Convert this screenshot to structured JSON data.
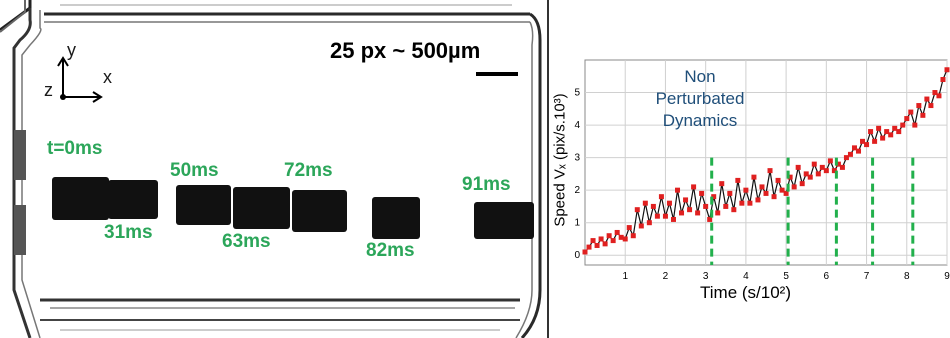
{
  "image": {
    "scale_label": "25 px ~ 500µm",
    "axes_labels": {
      "y": "y",
      "z": "z",
      "x": "x"
    },
    "frame_labels": [
      "t=0ms",
      "31ms",
      "50ms",
      "63ms",
      "72ms",
      "82ms",
      "91ms"
    ],
    "colors": {
      "frame_label": "#2ca65a",
      "annotation": "#1f4e79"
    }
  },
  "chart_data": {
    "type": "line",
    "xlabel": "Time (s/10²)",
    "ylabel": "Speed Vₓ (pix/s.10³)",
    "xlim": [
      0,
      9
    ],
    "ylim": [
      -0.3,
      6
    ],
    "x_ticks": [
      "1",
      "2",
      "3",
      "4",
      "5",
      "6",
      "7",
      "8",
      "9"
    ],
    "y_ticks": [
      "0",
      "1",
      "2",
      "3",
      "4",
      "5"
    ],
    "grid": true,
    "annotation": [
      "Non",
      "Perturbated",
      "Dynamics"
    ],
    "series": [
      {
        "style": "black line with red markers",
        "x": [
          0.0,
          0.1,
          0.2,
          0.3,
          0.4,
          0.5,
          0.6,
          0.7,
          0.8,
          0.9,
          1.0,
          1.1,
          1.2,
          1.3,
          1.4,
          1.5,
          1.6,
          1.7,
          1.8,
          1.9,
          2.0,
          2.1,
          2.2,
          2.3,
          2.4,
          2.5,
          2.6,
          2.7,
          2.8,
          2.9,
          3.0,
          3.1,
          3.2,
          3.3,
          3.4,
          3.5,
          3.6,
          3.7,
          3.8,
          3.9,
          4.0,
          4.1,
          4.2,
          4.3,
          4.4,
          4.5,
          4.6,
          4.7,
          4.8,
          4.9,
          5.0,
          5.1,
          5.2,
          5.3,
          5.4,
          5.5,
          5.6,
          5.7,
          5.8,
          5.9,
          6.0,
          6.1,
          6.2,
          6.3,
          6.4,
          6.5,
          6.6,
          6.7,
          6.8,
          6.9,
          7.0,
          7.1,
          7.2,
          7.3,
          7.4,
          7.5,
          7.6,
          7.7,
          7.8,
          7.9,
          8.0,
          8.1,
          8.2,
          8.3,
          8.4,
          8.5,
          8.6,
          8.7,
          8.8,
          8.9,
          9.0
        ],
        "y": [
          0.1,
          0.25,
          0.45,
          0.3,
          0.5,
          0.35,
          0.6,
          0.45,
          0.7,
          0.55,
          0.5,
          0.85,
          0.6,
          1.4,
          0.9,
          1.6,
          1.0,
          1.5,
          1.2,
          1.8,
          1.2,
          1.6,
          1.1,
          2.0,
          1.3,
          1.7,
          1.4,
          2.1,
          1.3,
          1.9,
          1.5,
          1.1,
          1.8,
          1.3,
          2.2,
          1.5,
          1.9,
          1.4,
          2.3,
          1.6,
          2.0,
          1.6,
          2.4,
          1.7,
          2.1,
          1.9,
          2.6,
          1.8,
          2.3,
          2.0,
          1.9,
          2.4,
          2.1,
          2.7,
          2.2,
          2.5,
          2.4,
          2.8,
          2.5,
          2.7,
          2.6,
          2.9,
          2.6,
          2.8,
          2.7,
          3.0,
          3.1,
          3.3,
          3.2,
          3.5,
          3.4,
          3.8,
          3.5,
          3.9,
          3.6,
          3.8,
          3.7,
          3.9,
          3.8,
          4.0,
          4.2,
          4.4,
          4.0,
          4.6,
          4.3,
          4.8,
          4.6,
          5.0,
          4.9,
          5.4,
          5.7
        ]
      }
    ],
    "marker_x": [
      3.15,
      5.05,
      6.25,
      7.15,
      8.15
    ]
  }
}
